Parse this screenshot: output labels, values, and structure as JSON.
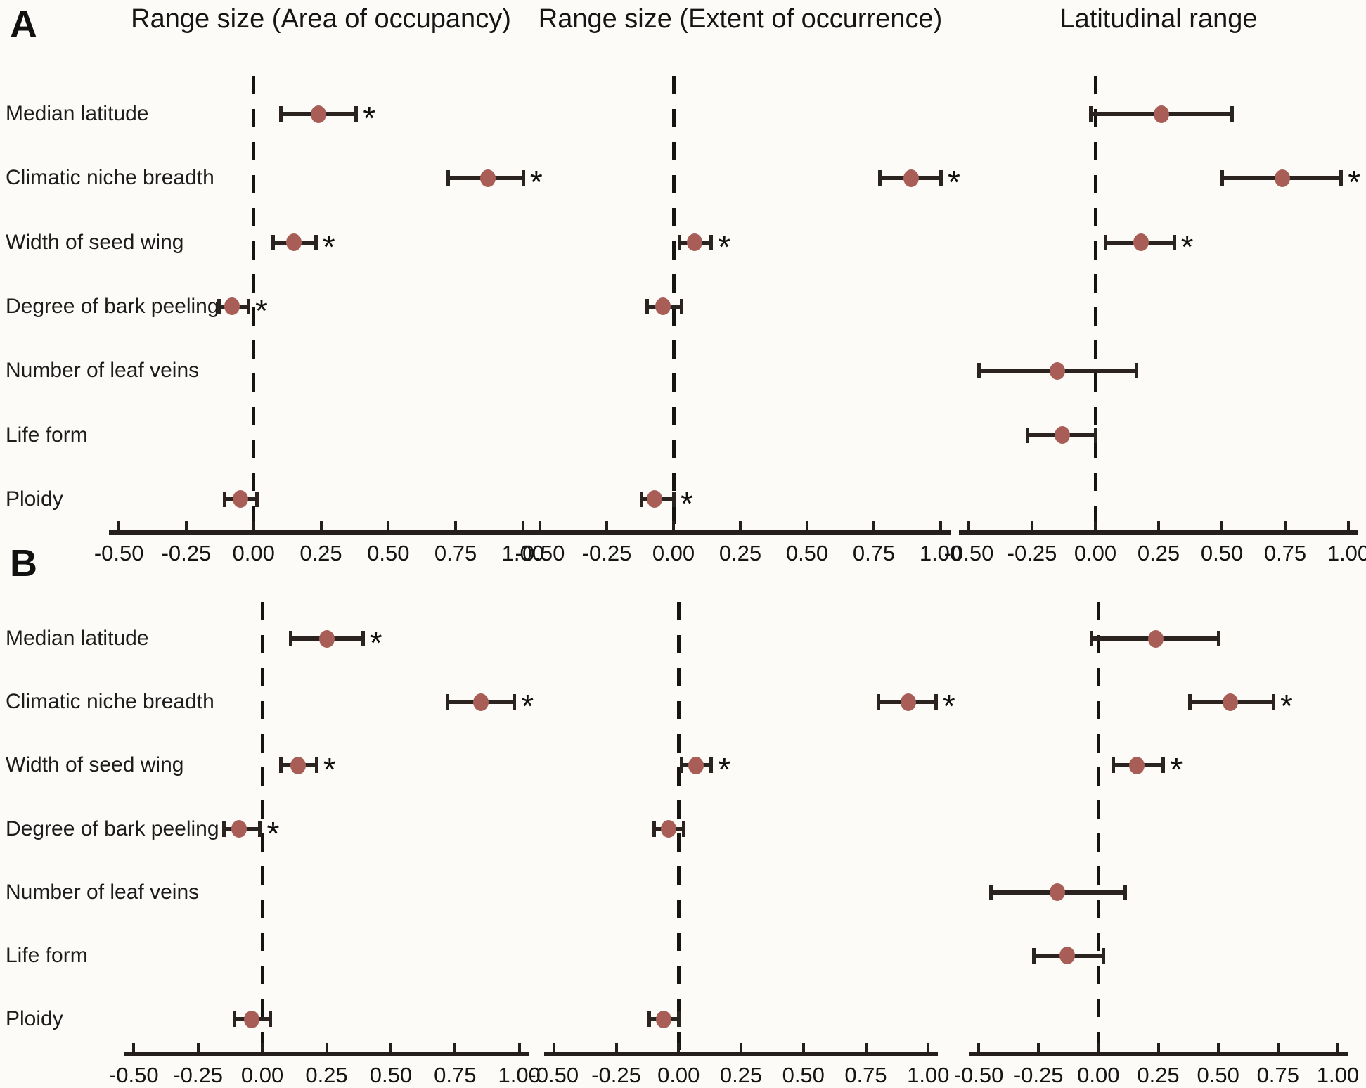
{
  "chart_data": {
    "type": "forest",
    "categories": [
      "Median latitude",
      "Climatic niche breadth",
      "Width of seed wing",
      "Degree of bark peeling",
      "Number of leaf veins",
      "Life form",
      "Ploidy"
    ],
    "columns": [
      {
        "key": "aoo",
        "title": "Range size (Area of occupancy)"
      },
      {
        "key": "eoo",
        "title": "Range size (Extent of occurrence)"
      },
      {
        "key": "lat",
        "title": "Latitudinal range"
      }
    ],
    "x_axis": {
      "range": [
        -0.55,
        1.05
      ],
      "ticks": [
        -0.5,
        -0.25,
        0.0,
        0.25,
        0.5,
        0.75,
        1.0
      ],
      "tick_labels": [
        "-0.50",
        "-0.25",
        "0.00",
        "0.25",
        "0.50",
        "0.75",
        "1.00"
      ],
      "zero_reference_line": true
    },
    "panels": [
      {
        "label": "A",
        "series": {
          "aoo": [
            {
              "category": "Median latitude",
              "estimate": 0.24,
              "ci_low": 0.1,
              "ci_high": 0.38,
              "significant": true
            },
            {
              "category": "Climatic niche breadth",
              "estimate": 0.87,
              "ci_low": 0.72,
              "ci_high": 1.0,
              "significant": true
            },
            {
              "category": "Width of seed wing",
              "estimate": 0.15,
              "ci_low": 0.07,
              "ci_high": 0.23,
              "significant": true
            },
            {
              "category": "Degree of bark peeling",
              "estimate": -0.08,
              "ci_low": -0.13,
              "ci_high": -0.02,
              "significant": true
            },
            {
              "category": "Ploidy",
              "estimate": -0.05,
              "ci_low": -0.11,
              "ci_high": 0.01,
              "significant": false
            }
          ],
          "eoo": [
            {
              "category": "Climatic niche breadth",
              "estimate": 0.89,
              "ci_low": 0.77,
              "ci_high": 1.0,
              "significant": true
            },
            {
              "category": "Width of seed wing",
              "estimate": 0.08,
              "ci_low": 0.02,
              "ci_high": 0.14,
              "significant": true
            },
            {
              "category": "Degree of bark peeling",
              "estimate": -0.04,
              "ci_low": -0.1,
              "ci_high": 0.03,
              "significant": false
            },
            {
              "category": "Ploidy",
              "estimate": -0.07,
              "ci_low": -0.12,
              "ci_high": 0.0,
              "significant": true
            }
          ],
          "lat": [
            {
              "category": "Median latitude",
              "estimate": 0.26,
              "ci_low": -0.02,
              "ci_high": 0.54,
              "significant": false
            },
            {
              "category": "Climatic niche breadth",
              "estimate": 0.74,
              "ci_low": 0.5,
              "ci_high": 0.97,
              "significant": true
            },
            {
              "category": "Width of seed wing",
              "estimate": 0.18,
              "ci_low": 0.04,
              "ci_high": 0.31,
              "significant": true
            },
            {
              "category": "Number of leaf veins",
              "estimate": -0.15,
              "ci_low": -0.46,
              "ci_high": 0.16,
              "significant": false
            },
            {
              "category": "Life form",
              "estimate": -0.13,
              "ci_low": -0.27,
              "ci_high": 0.0,
              "significant": false
            }
          ]
        }
      },
      {
        "label": "B",
        "series": {
          "aoo": [
            {
              "category": "Median latitude",
              "estimate": 0.25,
              "ci_low": 0.11,
              "ci_high": 0.39,
              "significant": true
            },
            {
              "category": "Climatic niche breadth",
              "estimate": 0.85,
              "ci_low": 0.72,
              "ci_high": 0.98,
              "significant": true
            },
            {
              "category": "Width of seed wing",
              "estimate": 0.14,
              "ci_low": 0.07,
              "ci_high": 0.21,
              "significant": true
            },
            {
              "category": "Degree of bark peeling",
              "estimate": -0.09,
              "ci_low": -0.15,
              "ci_high": -0.01,
              "significant": true
            },
            {
              "category": "Ploidy",
              "estimate": -0.04,
              "ci_low": -0.11,
              "ci_high": 0.03,
              "significant": false
            }
          ],
          "eoo": [
            {
              "category": "Climatic niche breadth",
              "estimate": 0.92,
              "ci_low": 0.8,
              "ci_high": 1.03,
              "significant": true
            },
            {
              "category": "Width of seed wing",
              "estimate": 0.07,
              "ci_low": 0.01,
              "ci_high": 0.13,
              "significant": true
            },
            {
              "category": "Degree of bark peeling",
              "estimate": -0.04,
              "ci_low": -0.1,
              "ci_high": 0.02,
              "significant": false
            },
            {
              "category": "Ploidy",
              "estimate": -0.06,
              "ci_low": -0.12,
              "ci_high": 0.0,
              "significant": false
            }
          ],
          "lat": [
            {
              "category": "Median latitude",
              "estimate": 0.24,
              "ci_low": -0.03,
              "ci_high": 0.5,
              "significant": false
            },
            {
              "category": "Climatic niche breadth",
              "estimate": 0.55,
              "ci_low": 0.38,
              "ci_high": 0.73,
              "significant": true
            },
            {
              "category": "Width of seed wing",
              "estimate": 0.16,
              "ci_low": 0.06,
              "ci_high": 0.27,
              "significant": true
            },
            {
              "category": "Number of leaf veins",
              "estimate": -0.17,
              "ci_low": -0.45,
              "ci_high": 0.11,
              "significant": false
            },
            {
              "category": "Life form",
              "estimate": -0.13,
              "ci_low": -0.27,
              "ci_high": 0.02,
              "significant": false
            }
          ]
        }
      }
    ],
    "style": {
      "marker_color": "#a85e56",
      "line_color": "#2b2320",
      "axis_color": "#241f1d",
      "background": "#fcfbf8",
      "significance_symbol": "*"
    }
  }
}
